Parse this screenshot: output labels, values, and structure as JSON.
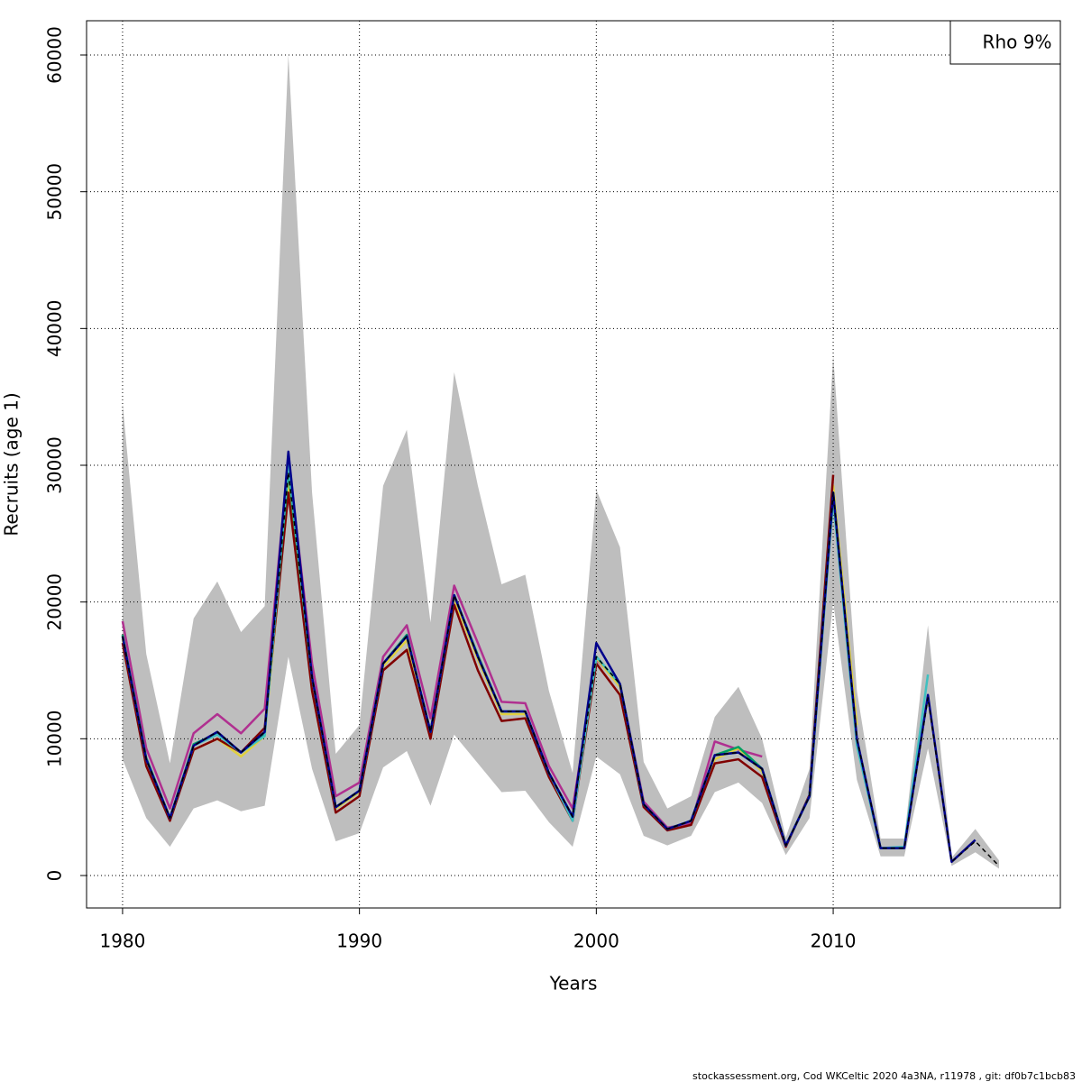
{
  "chart_data": {
    "type": "line",
    "x_label": "Years",
    "y_label": "Recruits (age 1)",
    "legend_text": "Rho 9%",
    "footer": "stockassessment.org, Cod  WKCeltic  2020  4a3NA, r11978 , git: df0b7c1bcb83",
    "legend_position": "top-right",
    "grid": true,
    "xlim": [
      1978.48,
      2019.59
    ],
    "ylim": [
      -2374,
      62506
    ],
    "xticks": [
      1980,
      1990,
      2000,
      2010
    ],
    "yticks": [
      0,
      10000,
      20000,
      30000,
      40000,
      50000,
      60000
    ],
    "x": [
      1980,
      1981,
      1982,
      1983,
      1984,
      1985,
      1986,
      1987,
      1988,
      1989,
      1990,
      1991,
      1992,
      1993,
      1994,
      1995,
      1996,
      1997,
      1998,
      1999,
      2000,
      2001,
      2002,
      2003,
      2004,
      2005,
      2006,
      2007,
      2008,
      2009,
      2010,
      2011,
      2012,
      2013,
      2014,
      2015,
      2016,
      2017
    ],
    "band": {
      "color": "#bebebe",
      "upper": [
        34500,
        16200,
        8200,
        18800,
        21500,
        17800,
        19700,
        60000,
        28000,
        8900,
        11000,
        28500,
        32600,
        18500,
        36800,
        28500,
        21300,
        22000,
        13500,
        7500,
        28200,
        24000,
        8300,
        4900,
        5800,
        11600,
        13800,
        10000,
        2800,
        7800,
        38000,
        13500,
        2700,
        2700,
        18300,
        1300,
        3400,
        1100
      ],
      "lower": [
        8500,
        4200,
        2100,
        4900,
        5500,
        4700,
        5100,
        16000,
        7800,
        2500,
        3100,
        7900,
        9100,
        5100,
        10300,
        8200,
        6100,
        6200,
        3900,
        2100,
        8700,
        7400,
        2900,
        2200,
        2900,
        6100,
        6800,
        5300,
        1500,
        4200,
        20000,
        7000,
        1400,
        1400,
        9300,
        700,
        1700,
        500
      ]
    },
    "series": [
      {
        "color": "#b03090",
        "values": [
          18600,
          9300,
          4900,
          10400,
          11800,
          10400,
          12200,
          30500,
          15500,
          5800,
          6800,
          16000,
          18300,
          11500,
          21200,
          17000,
          12700,
          12600,
          8000,
          4900,
          15800,
          14000,
          5400,
          3500,
          3800,
          9800,
          9200,
          8700,
          null,
          null,
          null,
          null,
          null,
          null,
          null,
          null,
          null,
          null
        ]
      },
      {
        "color": "#e0d040",
        "values": [
          17300,
          8400,
          4100,
          9200,
          10000,
          8700,
          10200,
          28500,
          14200,
          4900,
          6100,
          15300,
          17200,
          10300,
          20200,
          15800,
          11800,
          11800,
          7400,
          4200,
          15900,
          13800,
          5100,
          3400,
          4000,
          8500,
          9300,
          7600,
          2200,
          5800,
          28500,
          11000,
          null,
          null,
          null,
          null,
          null,
          null
        ]
      },
      {
        "color": "#800000",
        "values": [
          17000,
          8000,
          4000,
          9200,
          10000,
          9000,
          10800,
          28000,
          13500,
          4600,
          5800,
          15000,
          16500,
          10000,
          19800,
          15000,
          11300,
          11500,
          7200,
          4000,
          15500,
          13200,
          5000,
          3300,
          3700,
          8200,
          8500,
          7200,
          2100,
          5900,
          29300,
          null,
          null,
          null,
          null,
          null,
          null,
          null
        ]
      },
      {
        "color": "#00a060",
        "values": [
          17600,
          8600,
          4200,
          9600,
          10400,
          9000,
          10400,
          29600,
          14500,
          5000,
          6200,
          15500,
          17600,
          10500,
          20500,
          16100,
          12000,
          12000,
          7500,
          4300,
          16000,
          14000,
          5200,
          3400,
          4000,
          8800,
          9400,
          7800,
          2200,
          5800,
          28000,
          9800,
          2000,
          2000,
          null,
          null,
          null,
          null
        ]
      },
      {
        "color": "#40c0c0",
        "values": [
          17500,
          8500,
          4200,
          9500,
          10300,
          9000,
          10200,
          30000,
          14500,
          5000,
          6200,
          15500,
          17500,
          10500,
          20500,
          16000,
          12000,
          12000,
          7500,
          4000,
          16000,
          14000,
          5200,
          3400,
          4000,
          8800,
          9000,
          7800,
          2200,
          5800,
          27500,
          9500,
          2000,
          2100,
          14700,
          null,
          null,
          null
        ]
      },
      {
        "color": "#00008b",
        "values": [
          17500,
          8500,
          4200,
          9500,
          10500,
          9000,
          10500,
          31000,
          14500,
          5000,
          6200,
          15500,
          17500,
          10500,
          20500,
          16000,
          12000,
          12000,
          7500,
          4300,
          17000,
          14000,
          5200,
          3400,
          4000,
          8800,
          9000,
          7800,
          2200,
          5800,
          28000,
          10000,
          2000,
          2000,
          13200,
          1000,
          2600,
          null
        ]
      },
      {
        "color": "#000000",
        "dashed": true,
        "values": [
          17500,
          8500,
          4200,
          9500,
          10500,
          9000,
          10500,
          29500,
          14500,
          5000,
          6200,
          15500,
          17500,
          10500,
          20500,
          16000,
          12000,
          12000,
          7500,
          4300,
          16000,
          14000,
          5200,
          3400,
          4000,
          8800,
          9000,
          7800,
          2200,
          5800,
          28000,
          10000,
          2000,
          2000,
          13000,
          1000,
          2500,
          700
        ]
      }
    ]
  }
}
